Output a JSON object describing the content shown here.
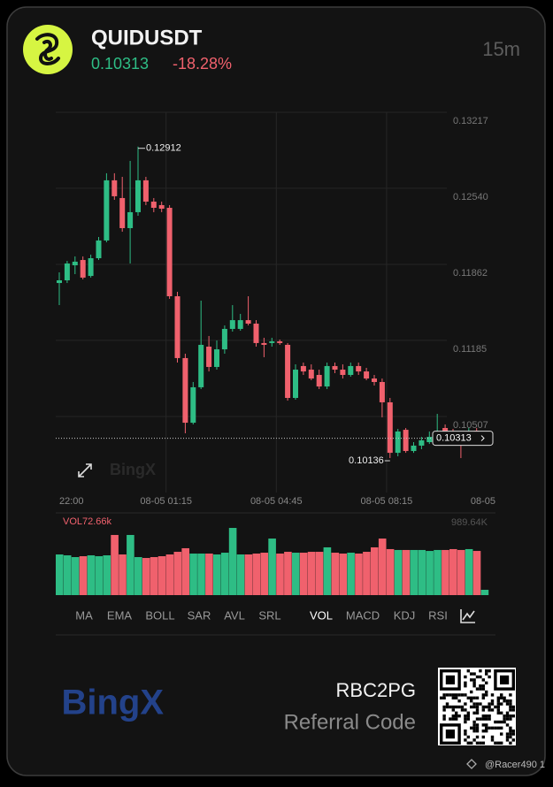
{
  "header": {
    "symbol": "QUIDUSDT",
    "price": "0.10313",
    "change": "-18.28%",
    "interval": "15m"
  },
  "chart_data": {
    "type": "candlestick",
    "categories": [
      "22:00",
      null,
      null,
      null,
      null,
      null,
      null,
      null,
      null,
      null,
      null,
      null,
      null,
      "08-05 01:15",
      null,
      null,
      null,
      null,
      null,
      null,
      null,
      null,
      null,
      null,
      null,
      null,
      null,
      "08-05 04:45",
      null,
      null,
      null,
      null,
      null,
      null,
      null,
      null,
      null,
      null,
      null,
      null,
      null,
      "08-05 08:15",
      null,
      null,
      null,
      null,
      null,
      null,
      null,
      null,
      null,
      null,
      null,
      null,
      "08-05"
    ],
    "open": [
      0.11696,
      0.1172,
      0.11854,
      0.11901,
      0.11759,
      0.11917,
      0.12075,
      0.12611,
      0.12453,
      0.12185,
      0.12327,
      0.12611,
      0.12421,
      0.1239,
      0.12366,
      0.11578,
      0.11027,
      0.10451,
      0.10767,
      0.11129,
      0.10948,
      0.11105,
      0.11287,
      0.11287,
      0.11365,
      0.11334,
      0.11161,
      0.11161,
      0.11176,
      0.11145,
      0.10672,
      0.10956,
      0.10924,
      0.10877,
      0.10774,
      0.10956,
      0.10924,
      0.10877,
      0.10956,
      0.10908,
      0.10845,
      0.10814,
      0.10633,
      0.10183,
      0.10388,
      0.10199,
      0.10247,
      0.10278,
      0.10325,
      0.10404,
      0.10373,
      0.10325,
      0.10294,
      0.1038,
      0.10302
    ],
    "high": [
      0.11791,
      0.11893,
      0.11933,
      0.11933,
      0.11949,
      0.12106,
      0.12674,
      0.12674,
      0.12642,
      0.12784,
      0.12912,
      0.12642,
      0.12453,
      0.12421,
      0.1239,
      0.11618,
      0.11066,
      0.10814,
      0.11539,
      0.11224,
      0.11184,
      0.11318,
      0.11499,
      0.11421,
      0.11578,
      0.11365,
      0.11208,
      0.11208,
      0.11192,
      0.11161,
      0.10971,
      0.10987,
      0.10971,
      0.10924,
      0.10987,
      0.10987,
      0.10971,
      0.10987,
      0.10987,
      0.1094,
      0.10877,
      0.10845,
      0.10672,
      0.10396,
      0.10404,
      0.10278,
      0.10325,
      0.10373,
      0.1053,
      0.10436,
      0.10396,
      0.10357,
      0.10404,
      0.10404,
      0.10357
    ],
    "low": [
      0.11499,
      0.11696,
      0.11775,
      0.11728,
      0.11744,
      0.11901,
      0.12059,
      0.12437,
      0.12153,
      0.1187,
      0.12295,
      0.1239,
      0.12327,
      0.12327,
      0.11555,
      0.10987,
      0.10357,
      0.10436,
      0.10751,
      0.10908,
      0.10924,
      0.11066,
      0.11263,
      0.11271,
      0.11318,
      0.11129,
      0.11035,
      0.11129,
      0.11145,
      0.10648,
      0.10656,
      0.10877,
      0.1083,
      0.10751,
      0.10751,
      0.10893,
      0.10845,
      0.10861,
      0.10877,
      0.1083,
      0.10782,
      0.10499,
      0.10136,
      0.10152,
      0.10183,
      0.10183,
      0.10215,
      0.10262,
      0.10294,
      0.10294,
      0.10278,
      0.10136,
      0.10278,
      0.10317,
      0.10278
    ],
    "close": [
      0.1172,
      0.1187,
      0.11886,
      0.11744,
      0.11917,
      0.12075,
      0.12611,
      0.12469,
      0.12185,
      0.12327,
      0.12611,
      0.12421,
      0.12366,
      0.12358,
      0.11578,
      0.11027,
      0.10451,
      0.10767,
      0.11145,
      0.10948,
      0.11105,
      0.11287,
      0.11365,
      0.11365,
      0.11334,
      0.11161,
      0.11145,
      0.11176,
      0.11161,
      0.10672,
      0.10924,
      0.10908,
      0.10845,
      0.10774,
      0.10956,
      0.10924,
      0.10877,
      0.10956,
      0.10908,
      0.10845,
      0.10814,
      0.10633,
      0.10183,
      0.10373,
      0.10199,
      0.10247,
      0.10294,
      0.10325,
      0.10373,
      0.10341,
      0.10325,
      0.10278,
      0.10373,
      0.10341,
      0.10313
    ],
    "volume": [
      555000,
      543000,
      519000,
      531000,
      543000,
      531000,
      543000,
      821000,
      555000,
      821000,
      519000,
      507000,
      519000,
      531000,
      555000,
      591000,
      640000,
      567000,
      567000,
      567000,
      555000,
      579000,
      917000,
      555000,
      555000,
      567000,
      579000,
      772000,
      567000,
      591000,
      579000,
      579000,
      591000,
      591000,
      652000,
      579000,
      567000,
      579000,
      567000,
      591000,
      652000,
      772000,
      628000,
      616000,
      616000,
      616000,
      616000,
      603000,
      616000,
      616000,
      628000,
      616000,
      628000,
      603000,
      72660
    ],
    "volume_label": "VOL72.66k",
    "ylim": [
      0.09829,
      0.13217
    ],
    "yticks": [
      0.10507,
      0.11185,
      0.11862,
      {
        "value": 0.1254,
        "label": "0.12540"
      },
      0.13217
    ],
    "volume_ylim": [
      0,
      989640
    ],
    "volume_ticks": [
      {
        "value": 989640,
        "label": "989.64K"
      }
    ],
    "up_color": "#2ebd85",
    "down_color": "#f0616d",
    "grid": true
  },
  "watermark": "BingX",
  "indicators": [
    "MA",
    "EMA",
    "BOLL",
    "SAR",
    "AVL",
    "SRL",
    "VOL",
    "MACD",
    "KDJ",
    "RSI"
  ],
  "active_indicator": 6,
  "referral": {
    "code": "RBC2PG",
    "label": "Referral Code"
  },
  "brand": "BingX",
  "footer": "@Racer490 1"
}
